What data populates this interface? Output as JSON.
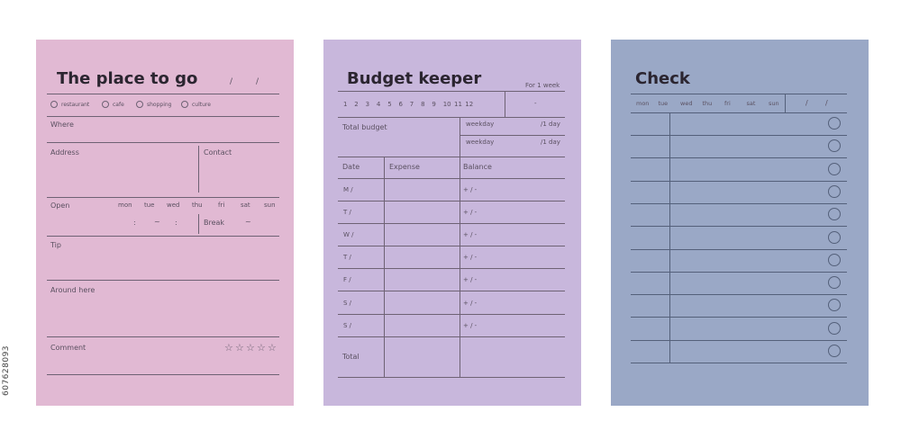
{
  "side_id": "607628093",
  "card1": {
    "title": "The place to go",
    "date_slashes": [
      "/",
      "/"
    ],
    "categories": [
      "restaurant",
      "cafe",
      "shopping",
      "culture"
    ],
    "where_label": "Where",
    "address_label": "Address",
    "contact_label": "Contact",
    "open_label": "Open",
    "days": [
      "mon",
      "tue",
      "wed",
      "thu",
      "fri",
      "sat",
      "sun"
    ],
    "time_marks": [
      ":",
      "~",
      ":"
    ],
    "break_label": "Break",
    "break_mark": "~",
    "tip_label": "Tip",
    "around_label": "Around here",
    "comment_label": "Comment",
    "rating": {
      "stars_total": 5,
      "stars_filled": 0
    },
    "star_glyph": "☆"
  },
  "card2": {
    "title": "Budget keeper",
    "period": "For 1 week",
    "months": [
      "1",
      "2",
      "3",
      "4",
      "5",
      "6",
      "7",
      "8",
      "9",
      "10",
      "11",
      "12"
    ],
    "range_mark": "-",
    "total_budget_label": "Total budget",
    "weekday_rows": [
      {
        "label": "weekday",
        "unit": "/1 day"
      },
      {
        "label": "weekday",
        "unit": "/1 day"
      }
    ],
    "columns": [
      "Date",
      "Expense",
      "Balance"
    ],
    "rows": [
      {
        "day": "M  /",
        "balance": "+  /  -"
      },
      {
        "day": "T  /",
        "balance": "+  /  -"
      },
      {
        "day": "W  /",
        "balance": "+  /  -"
      },
      {
        "day": "T  /",
        "balance": "+  /  -"
      },
      {
        "day": "F  /",
        "balance": "+  /  -"
      },
      {
        "day": "S  /",
        "balance": "+  /  -"
      },
      {
        "day": "S  /",
        "balance": "+  /  -"
      }
    ],
    "total_label": "Total"
  },
  "card3": {
    "title": "Check",
    "days": [
      "mon",
      "tue",
      "wed",
      "thu",
      "fri",
      "sat",
      "sun"
    ],
    "date_slashes": [
      "/",
      "/"
    ],
    "row_count": 11
  },
  "colors": {
    "card1_bg": "#e1b9d3",
    "card2_bg": "#c8b7dc",
    "card3_bg": "#9aa8c6"
  }
}
